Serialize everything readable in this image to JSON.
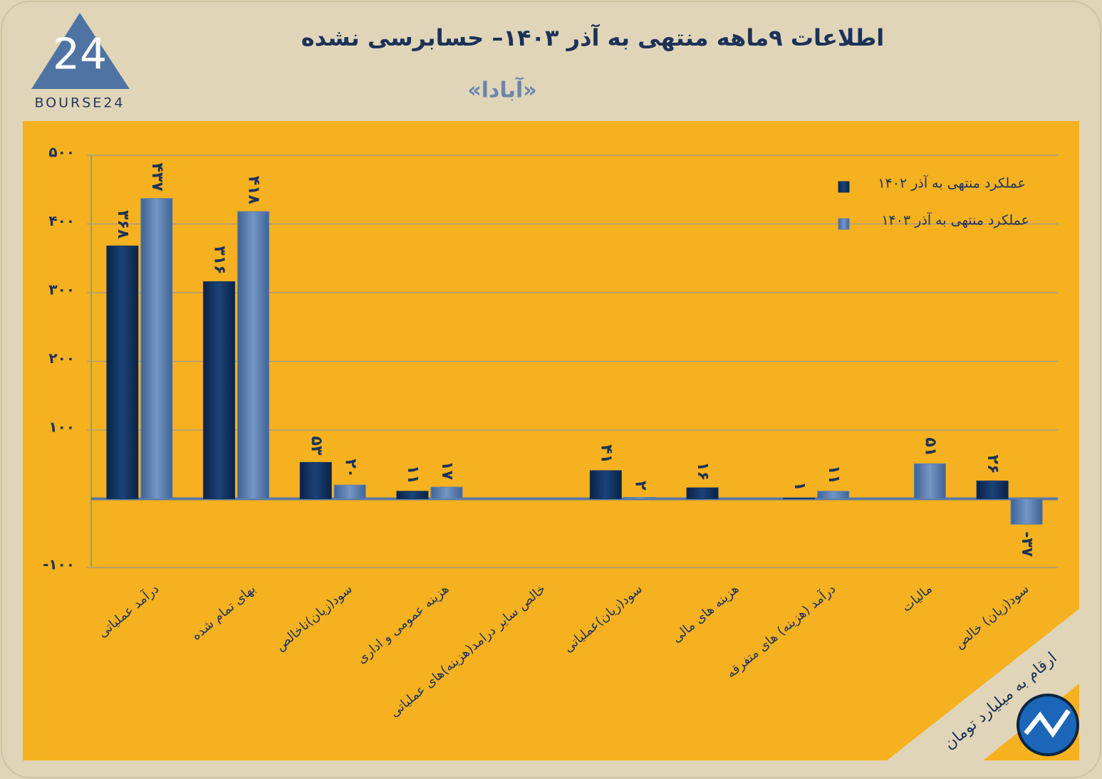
{
  "logo": {
    "text": "BOURSE24"
  },
  "note": "ارقام به میلیارد تومان",
  "chart_data": {
    "type": "bar",
    "title": "اطلاعات ۹ماهه منتهی به آذر ۱۴۰۳– حسابرسی نشده",
    "subtitle": "«آبادا»",
    "categories": [
      "درآمد عملیاتی",
      "بهای تمام شده",
      "سود(زیان)ناخالص",
      "هزینه عمومی و اداری",
      "خالص سایر درامد(هزینه)های عملیاتی",
      "سود(زیان)عملیاتی",
      "هزینه های مالی",
      "درآمد (هزینه) های متفرقه",
      "مالیات",
      "سود(زیان) خالص"
    ],
    "series": [
      {
        "name": "عملکرد منتهی به آذر ۱۴۰۲",
        "color": "#123460",
        "values": [
          368,
          316,
          53,
          11,
          null,
          41,
          16,
          1,
          null,
          26
        ],
        "value_labels": [
          "۳۶۸",
          "۳۱۶",
          "۵۳",
          "۱۱",
          null,
          "۴۱",
          "۱۶",
          "۱",
          null,
          "۲۶"
        ]
      },
      {
        "name": "عملکرد منتهی به آذر ۱۴۰۳",
        "color": "#5b80b0",
        "values": [
          437,
          418,
          20,
          17,
          null,
          2,
          null,
          11,
          51,
          -37
        ],
        "value_labels": [
          "۴۳۷",
          "۴۱۸",
          "۲۰",
          "۱۷",
          null,
          "۲",
          null,
          "۱۱",
          "۵۱",
          "-۳۷"
        ]
      }
    ],
    "ylim": [
      -100,
      500
    ],
    "yticks": [
      {
        "value": -100,
        "label": "-۱۰۰"
      },
      {
        "value": 100,
        "label": "۱۰۰"
      },
      {
        "value": 200,
        "label": "۲۰۰"
      },
      {
        "value": 300,
        "label": "۳۰۰"
      },
      {
        "value": 400,
        "label": "۴۰۰"
      },
      {
        "value": 500,
        "label": "۵۰۰"
      }
    ],
    "grid": true,
    "legend": "top-right"
  }
}
